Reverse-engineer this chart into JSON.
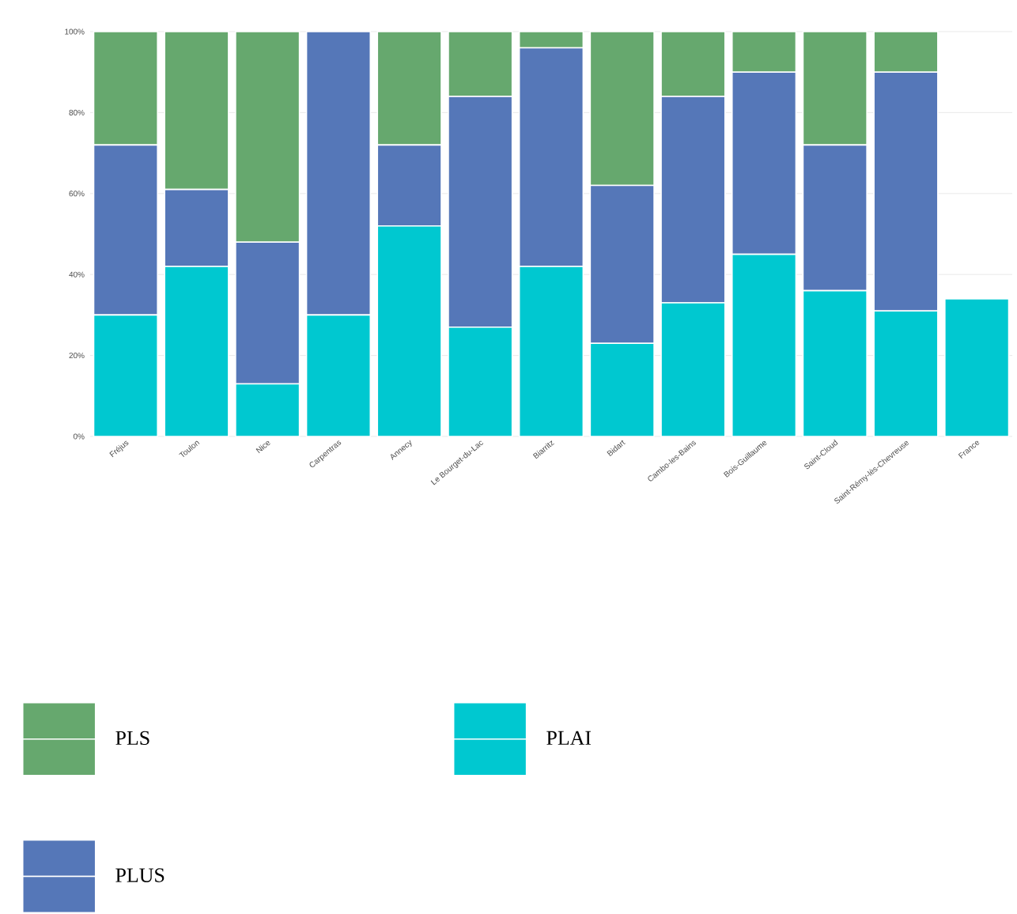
{
  "chart_data": {
    "type": "bar",
    "stacked": true,
    "grid": "y",
    "legend": "bottom",
    "categories": [
      "Fréjus",
      "Toulon",
      "Nice",
      "Carpentras",
      "Annecy",
      "Le Bourget-du-Lac",
      "Biarritz",
      "Bidart",
      "Cambo-les-Bains",
      "Bois-Guillaume",
      "Saint-Cloud",
      "Saint-Rémy-lès-Chevreuse",
      "France"
    ],
    "ylim": [
      0,
      100
    ],
    "yticks": [
      {
        "value": 0,
        "label": "0%"
      },
      {
        "value": 20,
        "label": "20%"
      },
      {
        "value": 40,
        "label": "40%"
      },
      {
        "value": 60,
        "label": "60%"
      },
      {
        "value": 80,
        "label": "80%"
      },
      {
        "value": 100,
        "label": "100%"
      }
    ],
    "series": [
      {
        "name": "PLAI",
        "color": "#00c8d0",
        "values": [
          30,
          42,
          13,
          30,
          52,
          27,
          42,
          23,
          33,
          45,
          36,
          31,
          34
        ]
      },
      {
        "name": "PLUS",
        "color": "#5577b8",
        "values": [
          42,
          19,
          35,
          70,
          20,
          57,
          54,
          39,
          51,
          45,
          36,
          59,
          0
        ]
      },
      {
        "name": "PLS",
        "color": "#66a86e",
        "values": [
          28,
          39,
          52,
          0,
          28,
          16,
          4,
          38,
          16,
          10,
          28,
          10,
          0
        ]
      }
    ]
  }
}
